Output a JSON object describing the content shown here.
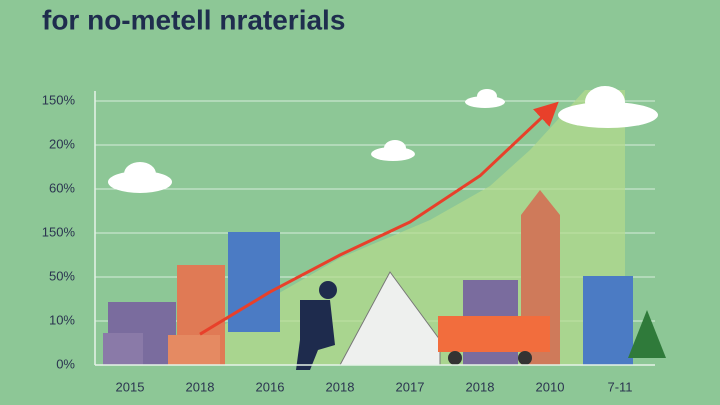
{
  "chart_data": {
    "type": "line",
    "title": "for no-metell nraterials",
    "categories": [
      "2015",
      "2018",
      "2016",
      "2018",
      "2017",
      "2018",
      "2010",
      "7-11"
    ],
    "values": [
      null,
      0.7,
      1.66,
      2.5,
      3.25,
      4.3,
      5.8,
      null
    ],
    "color": "#e8402a",
    "ylim": [
      0,
      6
    ],
    "yticks": [
      {
        "value": 0,
        "label": "0%"
      },
      {
        "value": 1,
        "label": "10%"
      },
      {
        "value": 2,
        "label": "50%"
      },
      {
        "value": 3,
        "label": "150%"
      },
      {
        "value": 4,
        "label": "60%"
      },
      {
        "value": 5,
        "label": "20%"
      },
      {
        "value": 6,
        "label": "150%"
      }
    ],
    "grid": true
  }
}
